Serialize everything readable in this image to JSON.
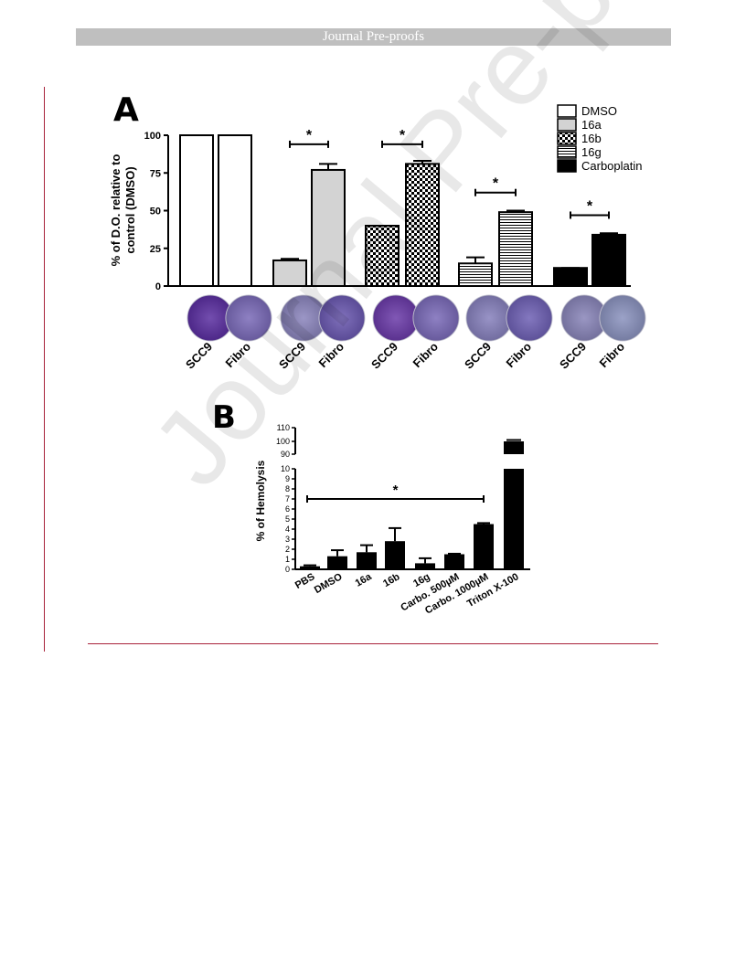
{
  "banner": "Journal Pre-proofs",
  "watermark": "Journal Pre-proofs",
  "colors": {
    "rule": "#a8223a",
    "banner": "#bfbfbf"
  },
  "chart_data": [
    {
      "panel": "A",
      "type": "bar",
      "ylabel": "% of D.O. relative to control (DMSO)",
      "ylabel_lines": [
        "% of D.O. relative to",
        "control (DMSO)"
      ],
      "ylim": [
        0,
        100
      ],
      "yticks": [
        0,
        25,
        50,
        75,
        100
      ],
      "legend": {
        "position": "top-right",
        "entries": [
          "DMSO",
          "16a",
          "16b",
          "16g",
          "Carboplatin"
        ]
      },
      "categories": [
        "SCC9",
        "Fibro",
        "SCC9",
        "Fibro",
        "SCC9",
        "Fibro",
        "SCC9",
        "Fibro",
        "SCC9",
        "Fibro"
      ],
      "groups": [
        {
          "name": "DMSO",
          "values": [
            100,
            100
          ],
          "errors": [
            0,
            0
          ]
        },
        {
          "name": "16a",
          "values": [
            17,
            77
          ],
          "errors": [
            1,
            4
          ]
        },
        {
          "name": "16b",
          "values": [
            40,
            81
          ],
          "errors": [
            0,
            2
          ]
        },
        {
          "name": "16g",
          "values": [
            15,
            49
          ],
          "errors": [
            4,
            1
          ]
        },
        {
          "name": "Carboplatin",
          "values": [
            12,
            34
          ],
          "errors": [
            0,
            1
          ]
        }
      ],
      "significance": [
        {
          "group": 1,
          "label": "*",
          "y": 94
        },
        {
          "group": 2,
          "label": "*",
          "y": 94
        },
        {
          "group": 3,
          "label": "*",
          "y": 62
        },
        {
          "group": 4,
          "label": "*",
          "y": 47
        }
      ],
      "well_colors": [
        "#5a2ea0",
        "#7a6ab8",
        "#8a84bc",
        "#6a58b0",
        "#6a3aa8",
        "#7a6ab8",
        "#8680bc",
        "#6e60b4",
        "#8884b8",
        "#8a92be"
      ]
    },
    {
      "panel": "B",
      "type": "bar",
      "ylabel": "% of Hemolysis",
      "axis_break": {
        "lower": [
          0,
          10
        ],
        "upper": [
          90,
          110
        ]
      },
      "yticks_lower": [
        0,
        1,
        2,
        3,
        4,
        5,
        6,
        7,
        8,
        9,
        10
      ],
      "yticks_upper": [
        90,
        100,
        110
      ],
      "categories": [
        "PBS",
        "DMSO",
        "16a",
        "16b",
        "16g",
        "Carbo. 500µM",
        "Carbo. 1000µM",
        "Triton X-100"
      ],
      "values": [
        0.3,
        1.3,
        1.7,
        2.8,
        0.6,
        1.5,
        4.5,
        100
      ],
      "errors": [
        0.1,
        0.6,
        0.7,
        1.3,
        0.5,
        0.05,
        0.1,
        1
      ],
      "significance": {
        "from": 0,
        "to": 6,
        "label": "*",
        "y": 7
      }
    }
  ]
}
